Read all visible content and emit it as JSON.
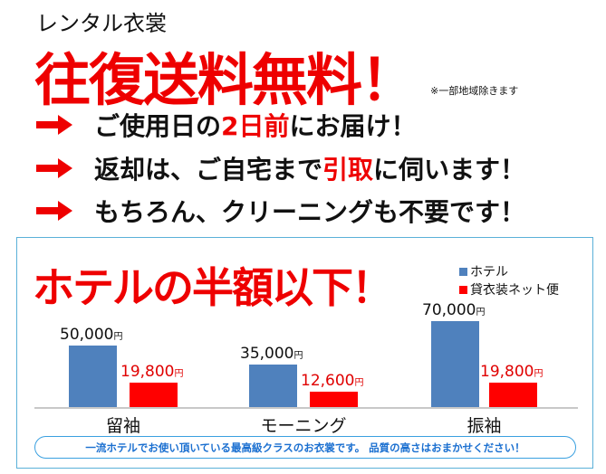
{
  "header": {
    "subtitle": "レンタル衣裳",
    "title": "往復送料無料！",
    "note": "※一部地域除きます"
  },
  "bullets": [
    {
      "icon": "arrow-right-icon",
      "parts": [
        {
          "t": "ご使用日の",
          "red": false
        },
        {
          "t": "2日前",
          "red": true
        },
        {
          "t": "にお届け！",
          "red": false
        }
      ]
    },
    {
      "icon": "arrow-right-icon",
      "parts": [
        {
          "t": "返却は、ご自宅まで",
          "red": false
        },
        {
          "t": "引取",
          "red": true
        },
        {
          "t": "に伺います！",
          "red": false
        }
      ]
    },
    {
      "icon": "arrow-right-icon",
      "parts": [
        {
          "t": "もちろん、クリーニングも不要です！",
          "red": false
        }
      ]
    }
  ],
  "chart_headline": "ホテルの半額以下！",
  "footer": "一流ホテルでお使い頂いている最高級クラスのお衣裳です。 品質の高さはおまかせください！",
  "chart_data": {
    "type": "bar",
    "categories": [
      "留袖",
      "モーニング",
      "振袖"
    ],
    "unit": "円",
    "series": [
      {
        "name": "ホテル",
        "color": "#4f81bd",
        "values": [
          50000,
          35000,
          70000
        ],
        "labels": [
          "50,000",
          "35,000",
          "70,000"
        ]
      },
      {
        "name": "貸衣装ネット便",
        "color": "#ff0000",
        "values": [
          19800,
          12600,
          19800
        ],
        "labels": [
          "19,800",
          "12,600",
          "19,800"
        ]
      }
    ],
    "ylim": [
      0,
      70000
    ],
    "legend": "top-right",
    "grid": false
  }
}
